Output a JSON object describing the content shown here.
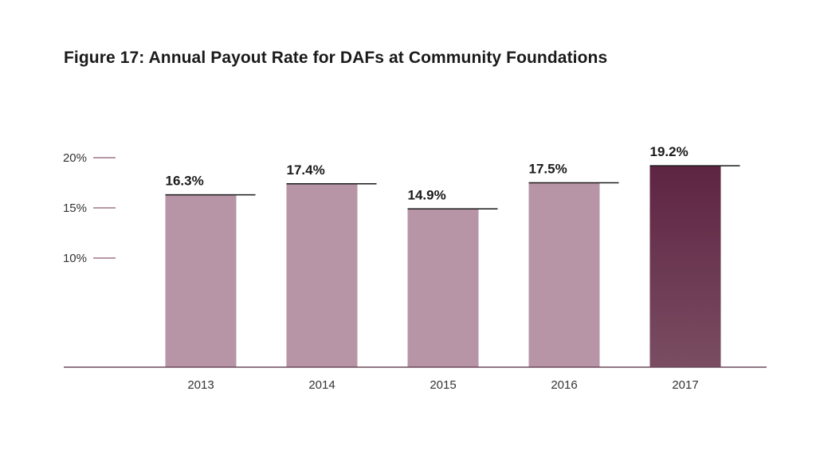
{
  "title": "Figure 17: Annual Payout Rate for DAFs at Community Foundations",
  "colors": {
    "bar": "#b795a6",
    "bar_highlight_top": "#5e2442",
    "bar_highlight_bottom": "#7a4d62",
    "tick_mark": "#8c5a70",
    "baseline": "#6b4a5a",
    "value_rule": "#1a1a1a"
  },
  "chart_data": {
    "type": "bar",
    "title": "Figure 17: Annual Payout Rate for DAFs at Community Foundations",
    "xlabel": "",
    "ylabel": "",
    "categories": [
      "2013",
      "2014",
      "2015",
      "2016",
      "2017"
    ],
    "values": [
      16.3,
      17.4,
      14.9,
      17.5,
      19.2
    ],
    "value_labels": [
      "16.3%",
      "17.4%",
      "14.9%",
      "17.5%",
      "19.2%"
    ],
    "highlight_index": 4,
    "y_ticks": [
      10,
      15,
      20
    ],
    "y_tick_labels": [
      "10%",
      "15%",
      "20%"
    ],
    "ylim": [
      0,
      21
    ],
    "grid": false,
    "legend": "none"
  }
}
